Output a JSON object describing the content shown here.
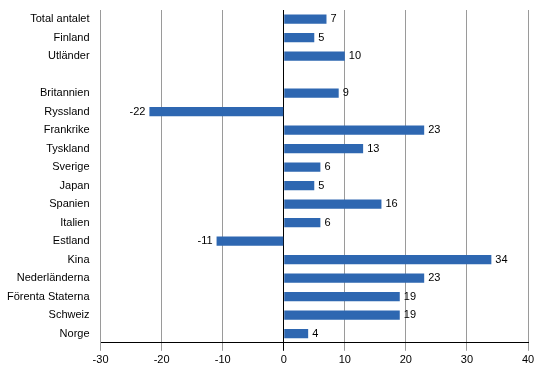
{
  "chart_data": {
    "type": "bar",
    "orientation": "horizontal",
    "categories": [
      "Total antalet",
      "Finland",
      "Utländer",
      null,
      "Britannien",
      "Ryssland",
      "Frankrike",
      "Tyskland",
      "Sverige",
      "Japan",
      "Spanien",
      "Italien",
      "Estland",
      "Kina",
      "Nederländerna",
      "Förenta Staterna",
      "Schweiz",
      "Norge"
    ],
    "values": [
      7,
      5,
      10,
      null,
      9,
      -22,
      23,
      13,
      6,
      5,
      16,
      6,
      -11,
      34,
      23,
      19,
      19,
      4
    ],
    "color": "#2e67b1",
    "xlim": [
      -30,
      40
    ],
    "xticks": [
      -30,
      -20,
      -10,
      0,
      10,
      20,
      30,
      40
    ],
    "grid": true,
    "data_labels": true
  }
}
